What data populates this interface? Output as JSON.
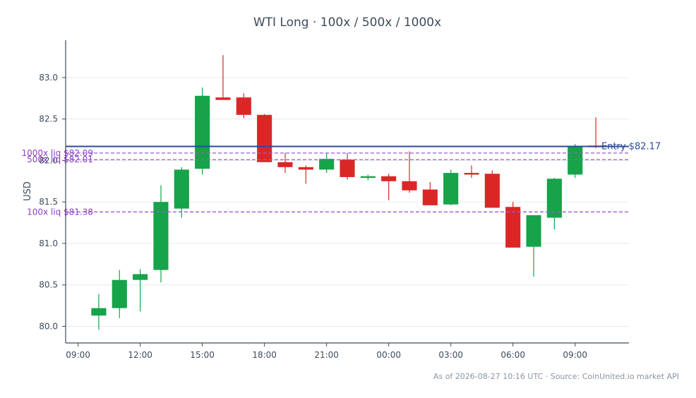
{
  "chart_data": {
    "type": "candlestick",
    "title": "WTI Long · 100x / 500x / 1000x",
    "ylabel": "USD",
    "xlabel": "",
    "ylim": [
      79.8,
      83.45
    ],
    "yticks": [
      80.0,
      80.5,
      81.0,
      81.5,
      82.0,
      82.5,
      83.0
    ],
    "ytick_labels": [
      "80.0",
      "80.5",
      "81.0",
      "81.5",
      "82.0",
      "82.5",
      "83.0"
    ],
    "xticks": [
      {
        "hour": 0,
        "label": "09:00"
      },
      {
        "hour": 3,
        "label": "12:00"
      },
      {
        "hour": 6,
        "label": "15:00"
      },
      {
        "hour": 9,
        "label": "18:00"
      },
      {
        "hour": 12,
        "label": "21:00"
      },
      {
        "hour": 15,
        "label": "00:00"
      },
      {
        "hour": 18,
        "label": "03:00"
      },
      {
        "hour": 21,
        "label": "06:00"
      },
      {
        "hour": 24,
        "label": "09:00"
      }
    ],
    "x_range_hours": [
      -0.6,
      26.6
    ],
    "grid": true,
    "up_color": "#16a34a",
    "down_color": "#dc2626",
    "candles": [
      {
        "hour": 1,
        "open": 80.13,
        "high": 80.39,
        "low": 79.96,
        "close": 80.22
      },
      {
        "hour": 2,
        "open": 80.22,
        "high": 80.68,
        "low": 80.1,
        "close": 80.56
      },
      {
        "hour": 3,
        "open": 80.56,
        "high": 80.69,
        "low": 80.18,
        "close": 80.63
      },
      {
        "hour": 4,
        "open": 80.68,
        "high": 81.7,
        "low": 80.53,
        "close": 81.5
      },
      {
        "hour": 5,
        "open": 81.42,
        "high": 81.92,
        "low": 81.31,
        "close": 81.89
      },
      {
        "hour": 6,
        "open": 81.9,
        "high": 82.88,
        "low": 81.83,
        "close": 82.78
      },
      {
        "hour": 7,
        "open": 82.76,
        "high": 83.27,
        "low": 82.73,
        "close": 82.73
      },
      {
        "hour": 8,
        "open": 82.76,
        "high": 82.81,
        "low": 82.51,
        "close": 82.55
      },
      {
        "hour": 9,
        "open": 82.55,
        "high": 82.56,
        "low": 81.98,
        "close": 81.98
      },
      {
        "hour": 10,
        "open": 81.98,
        "high": 82.09,
        "low": 81.85,
        "close": 81.92
      },
      {
        "hour": 11,
        "open": 81.92,
        "high": 81.94,
        "low": 81.72,
        "close": 81.89
      },
      {
        "hour": 12,
        "open": 81.89,
        "high": 82.09,
        "low": 81.85,
        "close": 82.02
      },
      {
        "hour": 13,
        "open": 82.01,
        "high": 82.09,
        "low": 81.77,
        "close": 81.8
      },
      {
        "hour": 14,
        "open": 81.79,
        "high": 81.83,
        "low": 81.76,
        "close": 81.81
      },
      {
        "hour": 15,
        "open": 81.81,
        "high": 81.84,
        "low": 81.52,
        "close": 81.75
      },
      {
        "hour": 16,
        "open": 81.75,
        "high": 82.11,
        "low": 81.61,
        "close": 81.64
      },
      {
        "hour": 17,
        "open": 81.65,
        "high": 81.74,
        "low": 81.46,
        "close": 81.46
      },
      {
        "hour": 18,
        "open": 81.47,
        "high": 81.89,
        "low": 81.46,
        "close": 81.85
      },
      {
        "hour": 19,
        "open": 81.85,
        "high": 81.94,
        "low": 81.79,
        "close": 81.83
      },
      {
        "hour": 20,
        "open": 81.84,
        "high": 81.88,
        "low": 81.43,
        "close": 81.43
      },
      {
        "hour": 21,
        "open": 81.44,
        "high": 81.5,
        "low": 80.95,
        "close": 80.95
      },
      {
        "hour": 22,
        "open": 80.96,
        "high": 81.34,
        "low": 80.6,
        "close": 81.34
      },
      {
        "hour": 23,
        "open": 81.31,
        "high": 81.79,
        "low": 81.17,
        "close": 81.78
      },
      {
        "hour": 24,
        "open": 81.83,
        "high": 82.2,
        "low": 81.79,
        "close": 82.17
      },
      {
        "hour": 25,
        "open": 82.18,
        "high": 82.52,
        "low": 82.15,
        "close": 82.16
      }
    ],
    "lines": [
      {
        "label": "Entry $82.17",
        "value": 82.17,
        "color": "#2a4a9c",
        "style": "solid"
      },
      {
        "label": "1000x liq $82.09",
        "value": 82.09,
        "color": "#9b59d6",
        "style": "dashed"
      },
      {
        "label": "500x liq $82.01",
        "value": 82.01,
        "color": "#9b59d6",
        "style": "dashed"
      },
      {
        "label": "100x liq $81.38",
        "value": 81.38,
        "color": "#9b59d6",
        "style": "dashed"
      }
    ],
    "footer": "As of 2026-08-27 10:16 UTC · Source: CoinUnited.io market API"
  }
}
